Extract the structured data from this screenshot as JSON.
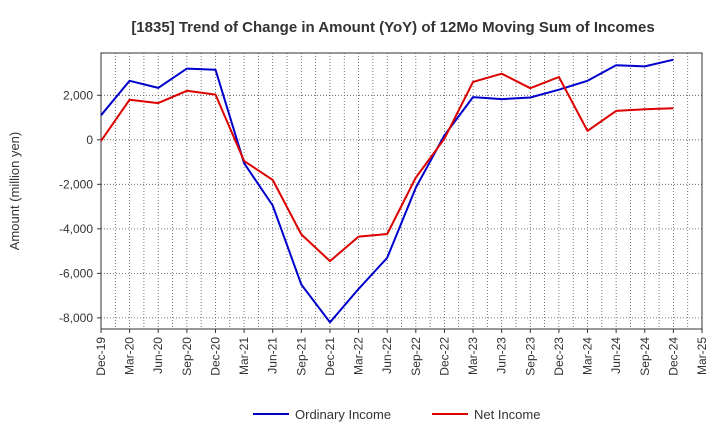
{
  "chart_data": {
    "type": "line",
    "title": "[1835]  Trend of Change in Amount (YoY) of 12Mo Moving Sum of Incomes",
    "xlabel": "",
    "ylabel": "Amount (million yen)",
    "categories": [
      "Dec-19",
      "Mar-20",
      "Jun-20",
      "Sep-20",
      "Dec-20",
      "Mar-21",
      "Jun-21",
      "Sep-21",
      "Dec-21",
      "Mar-22",
      "Jun-22",
      "Sep-22",
      "Dec-22",
      "Mar-23",
      "Jun-23",
      "Sep-23",
      "Dec-23",
      "Mar-24",
      "Jun-24",
      "Sep-24",
      "Dec-24",
      "Mar-25"
    ],
    "y_ticks": [
      2000,
      0,
      -2000,
      -4000,
      -6000,
      -8000
    ],
    "y_tick_labels": [
      "2,000",
      "0",
      "-2,000",
      "-4,000",
      "-6,000",
      "-8,000"
    ],
    "ylim": [
      -8500,
      3900
    ],
    "grid": true,
    "legend_position": "bottom",
    "series": [
      {
        "name": "Ordinary Income",
        "color": "#0000cc",
        "values": [
          1100,
          2650,
          2330,
          3200,
          3150,
          -1050,
          -2950,
          -6500,
          -8200,
          -6700,
          -5300,
          -2150,
          200,
          1920,
          1830,
          1900,
          2250,
          2650,
          3350,
          3300,
          3600,
          null
        ]
      },
      {
        "name": "Net Income",
        "color": "#dd0000",
        "values": [
          -50,
          1800,
          1650,
          2200,
          2030,
          -950,
          -1800,
          -4250,
          -5450,
          -4350,
          -4230,
          -1700,
          50,
          2600,
          2970,
          2320,
          2820,
          400,
          1300,
          1370,
          1420,
          null
        ]
      }
    ]
  }
}
